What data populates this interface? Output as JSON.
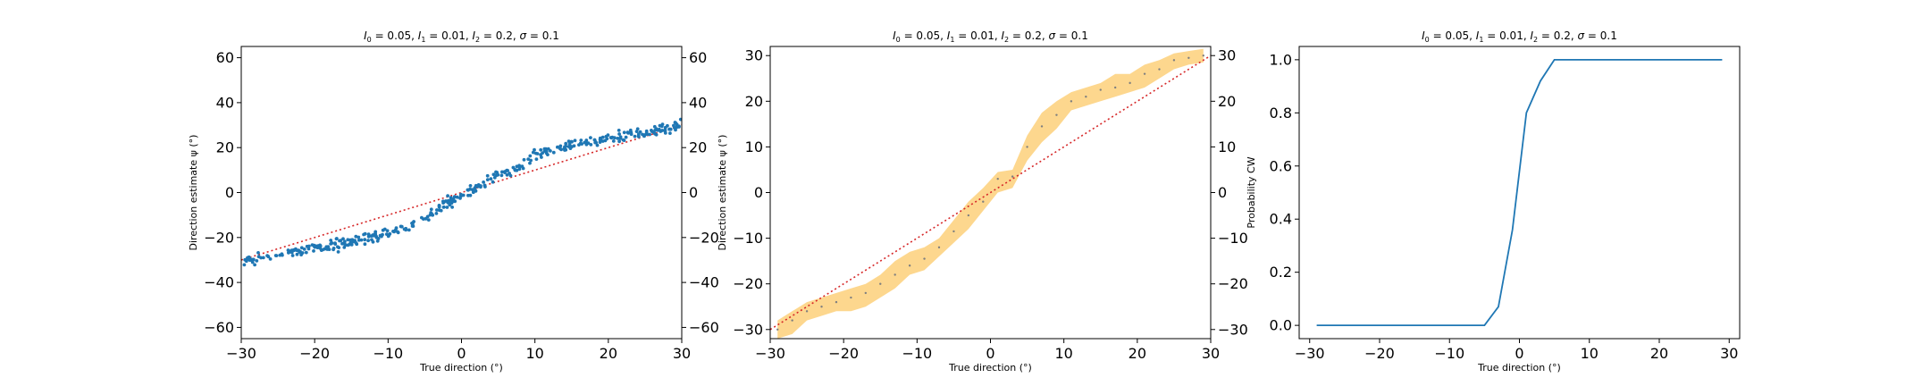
{
  "figure": {
    "background": "#ffffff",
    "colors": {
      "scatter": "#1f77b4",
      "line": "#1f77b4",
      "reference": "#d62728",
      "band": "#fdd07a",
      "dots": "#7f7f7f"
    }
  },
  "chart_data": [
    {
      "type": "scatter",
      "title_parts": [
        "I",
        "0",
        " = 0.05, ",
        "I",
        "1",
        " = 0.01, ",
        "I",
        "2",
        " = 0.2, ",
        "σ",
        " = 0.1"
      ],
      "xlabel": "True direction (°)",
      "ylabel": "Direction estimate ψ (°)",
      "xlim": [
        -30,
        30
      ],
      "ylim": [
        -65,
        65
      ],
      "xticks": [
        -30,
        -20,
        -10,
        0,
        10,
        20,
        30
      ],
      "yticks": [
        -60,
        -40,
        -20,
        0,
        20,
        40,
        60
      ],
      "right_ticks": true,
      "grid": false,
      "reference_line": {
        "x": [
          -30,
          30
        ],
        "y": [
          -30,
          30
        ],
        "style": "dotted",
        "color": "#d62728"
      },
      "trend": {
        "x": [
          -30,
          -25,
          -20,
          -15,
          -10,
          -7,
          -5,
          -3,
          0,
          3,
          5,
          8,
          10,
          12,
          15,
          20,
          25,
          30
        ],
        "y": [
          -31,
          -28,
          -25,
          -22,
          -18,
          -15,
          -11,
          -7,
          -1,
          4,
          8,
          12,
          17,
          19,
          21,
          24,
          27,
          30
        ]
      },
      "scatter_points": 400,
      "scatter_spread": 1.8
    },
    {
      "type": "area",
      "title_parts": [
        "I",
        "0",
        " = 0.05, ",
        "I",
        "1",
        " = 0.01, ",
        "I",
        "2",
        " = 0.2, ",
        "σ",
        " = 0.1"
      ],
      "xlabel": "True direction (°)",
      "ylabel": "Direction estimate ψ (°)",
      "xlim": [
        -30,
        30
      ],
      "ylim": [
        -32,
        32
      ],
      "xticks": [
        -30,
        -20,
        -10,
        0,
        10,
        20,
        30
      ],
      "yticks": [
        -30,
        -20,
        -10,
        0,
        10,
        20,
        30
      ],
      "right_ticks": true,
      "grid": false,
      "reference_line": {
        "x": [
          -30,
          30
        ],
        "y": [
          -30,
          30
        ],
        "style": "dotted",
        "color": "#d62728"
      },
      "x": [
        -29,
        -27,
        -25,
        -23,
        -21,
        -19,
        -17,
        -15,
        -13,
        -11,
        -9,
        -7,
        -5,
        -3,
        -1,
        1,
        3,
        5,
        7,
        9,
        11,
        13,
        15,
        17,
        19,
        21,
        23,
        25,
        27,
        29
      ],
      "mean": [
        -30,
        -28,
        -26,
        -25,
        -24,
        -23,
        -22,
        -20,
        -18,
        -16,
        -14.5,
        -12,
        -8.5,
        -5,
        -2,
        3,
        3.5,
        10,
        14.5,
        17,
        20,
        21,
        22.5,
        23,
        24,
        26,
        27,
        29,
        29.5,
        30
      ],
      "lower": [
        -32,
        -31,
        -28,
        -27,
        -26,
        -26,
        -25,
        -23,
        -21,
        -18,
        -17,
        -14,
        -11,
        -8,
        -4,
        0,
        1,
        7,
        11,
        14,
        18,
        19,
        20,
        21,
        22,
        23,
        25,
        27,
        28,
        28.5
      ],
      "upper": [
        -28,
        -26,
        -24,
        -23,
        -22,
        -21,
        -20,
        -18,
        -15,
        -13,
        -12,
        -10,
        -6,
        -2,
        1,
        4.5,
        5,
        12.5,
        17.5,
        20,
        22,
        23,
        24,
        26,
        26,
        28,
        29,
        30.5,
        31,
        31.5
      ]
    },
    {
      "type": "line",
      "title_parts": [
        "I",
        "0",
        " = 0.05, ",
        "I",
        "1",
        " = 0.01, ",
        "I",
        "2",
        " = 0.2, ",
        "σ",
        " = 0.1"
      ],
      "xlabel": "True direction (°)",
      "ylabel": "Probability CW",
      "xlim": [
        -31.5,
        31.5
      ],
      "ylim": [
        -0.05,
        1.05
      ],
      "xticks": [
        -30,
        -20,
        -10,
        0,
        10,
        20,
        30
      ],
      "yticks": [
        0.0,
        0.2,
        0.4,
        0.6,
        0.8,
        1.0
      ],
      "ytick_labels": [
        "0.0",
        "0.2",
        "0.4",
        "0.6",
        "0.8",
        "1.0"
      ],
      "right_ticks": false,
      "grid": false,
      "x": [
        -29,
        -27,
        -25,
        -23,
        -21,
        -19,
        -17,
        -15,
        -13,
        -11,
        -9,
        -7,
        -5,
        -3,
        -1,
        1,
        3,
        5,
        7,
        9,
        11,
        13,
        15,
        17,
        19,
        21,
        23,
        25,
        27,
        29
      ],
      "y": [
        0,
        0,
        0,
        0,
        0,
        0,
        0,
        0,
        0,
        0,
        0,
        0,
        0,
        0.07,
        0.36,
        0.8,
        0.92,
        1,
        1,
        1,
        1,
        1,
        1,
        1,
        1,
        1,
        1,
        1,
        1,
        1
      ]
    }
  ]
}
